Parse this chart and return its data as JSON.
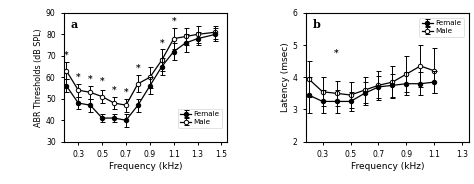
{
  "panel_a": {
    "title": "a",
    "xlabel": "Frequency (kHz)",
    "ylabel": "ABR Thresholds (dB SPL)",
    "ylim": [
      30,
      90
    ],
    "yticks": [
      30,
      40,
      50,
      60,
      70,
      80,
      90
    ],
    "xlim": [
      0.18,
      1.55
    ],
    "xticks": [
      0.3,
      0.5,
      0.7,
      0.9,
      1.1,
      1.3,
      1.5
    ],
    "female_x": [
      0.2,
      0.3,
      0.4,
      0.5,
      0.6,
      0.7,
      0.8,
      0.9,
      1.0,
      1.1,
      1.2,
      1.3,
      1.45
    ],
    "female_y": [
      56,
      48,
      47,
      41,
      41,
      40,
      47,
      56,
      65,
      72,
      76,
      78,
      80
    ],
    "female_yerr": [
      3,
      3,
      3,
      2,
      2,
      3,
      3,
      4,
      4,
      4,
      4,
      3,
      3
    ],
    "male_x": [
      0.2,
      0.3,
      0.4,
      0.5,
      0.6,
      0.7,
      0.8,
      0.9,
      1.0,
      1.1,
      1.2,
      1.3,
      1.45
    ],
    "male_y": [
      63,
      54,
      53,
      51,
      48,
      47,
      57,
      60,
      68,
      78,
      79,
      80,
      81
    ],
    "male_yerr": [
      4,
      3,
      3,
      3,
      3,
      3,
      4,
      5,
      5,
      5,
      4,
      4,
      3
    ],
    "sig_positions": [
      [
        0.2,
        68
      ],
      [
        0.3,
        58
      ],
      [
        0.4,
        57
      ],
      [
        0.5,
        56
      ],
      [
        0.6,
        52
      ],
      [
        0.7,
        51
      ],
      [
        0.8,
        62
      ],
      [
        1.0,
        74
      ],
      [
        1.1,
        84
      ]
    ]
  },
  "panel_b": {
    "title": "b",
    "xlabel": "Frequency (kHz)",
    "ylabel": "Latency (msec)",
    "ylim": [
      2,
      6
    ],
    "yticks": [
      2,
      3,
      4,
      5,
      6
    ],
    "xlim": [
      0.18,
      1.35
    ],
    "xticks": [
      0.3,
      0.5,
      0.7,
      0.9,
      1.1,
      1.3
    ],
    "female_x": [
      0.2,
      0.3,
      0.4,
      0.5,
      0.6,
      0.7,
      0.8,
      0.9,
      1.0,
      1.1
    ],
    "female_y": [
      3.45,
      3.25,
      3.25,
      3.25,
      3.5,
      3.7,
      3.75,
      3.8,
      3.8,
      3.85
    ],
    "female_yerr": [
      0.55,
      0.35,
      0.35,
      0.3,
      0.35,
      0.35,
      0.35,
      0.35,
      0.35,
      0.35
    ],
    "male_x": [
      0.2,
      0.3,
      0.4,
      0.5,
      0.6,
      0.7,
      0.8,
      0.9,
      1.0,
      1.1
    ],
    "male_y": [
      3.95,
      3.55,
      3.5,
      3.45,
      3.6,
      3.75,
      3.85,
      4.1,
      4.35,
      4.2
    ],
    "male_yerr": [
      0.55,
      0.45,
      0.4,
      0.4,
      0.4,
      0.45,
      0.5,
      0.55,
      0.65,
      0.7
    ],
    "sig_positions": [
      [
        0.4,
        4.6
      ]
    ]
  },
  "background_color": "#ffffff"
}
